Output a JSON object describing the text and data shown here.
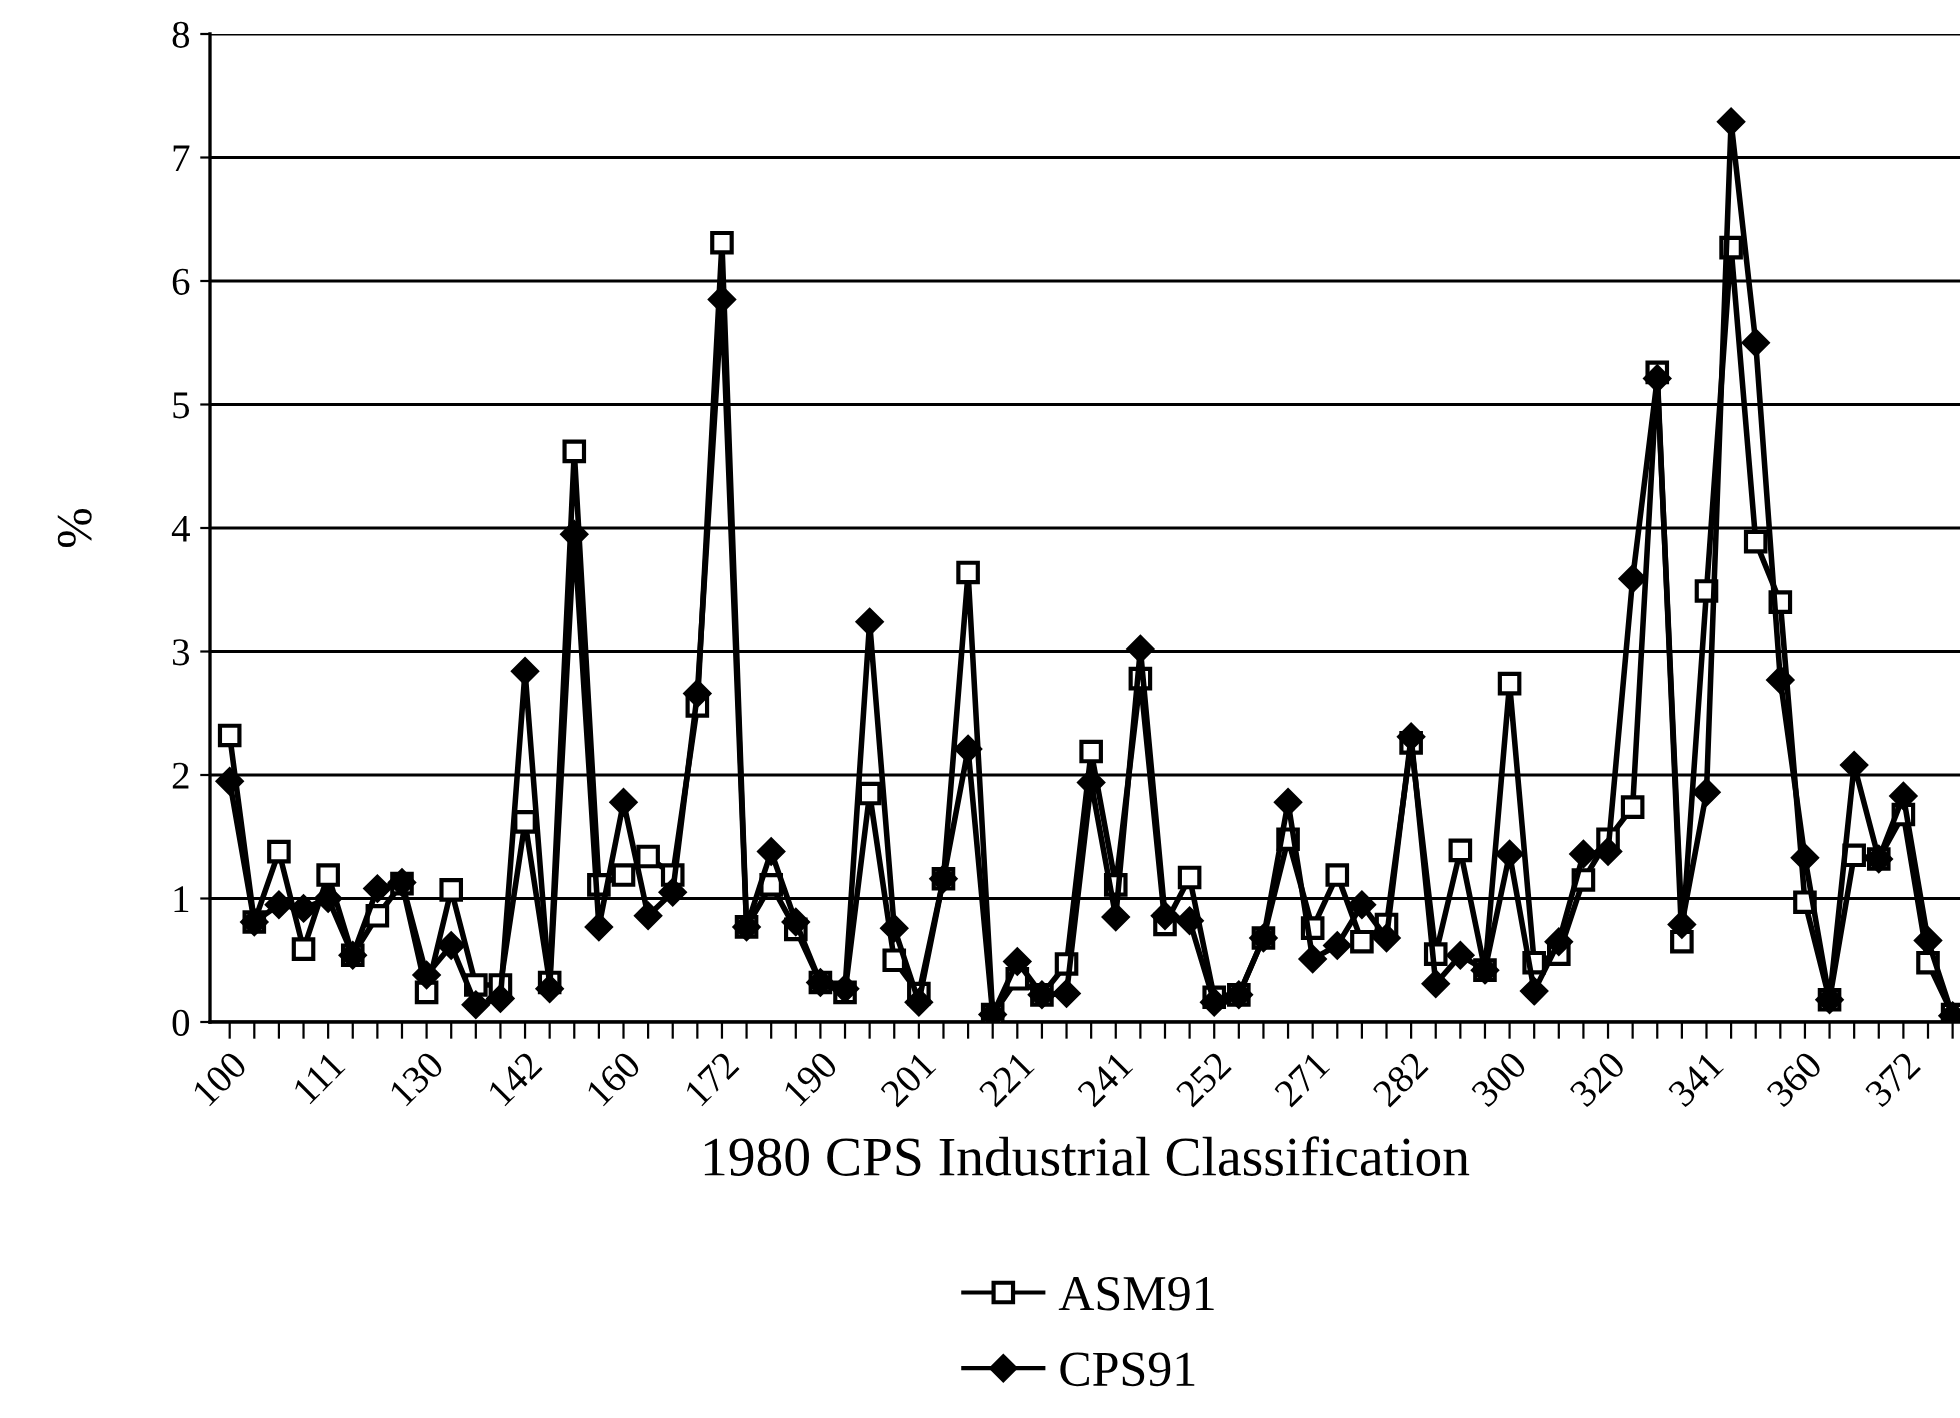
{
  "chart_data": {
    "type": "line",
    "xlabel": "1980 CPS Industrial Classification",
    "ylabel": "%",
    "categories": [
      "100",
      null,
      null,
      null,
      "111",
      null,
      null,
      null,
      "130",
      null,
      null,
      null,
      "142",
      null,
      null,
      null,
      "160",
      null,
      null,
      null,
      "172",
      null,
      null,
      null,
      "190",
      null,
      null,
      null,
      "201",
      null,
      null,
      null,
      "221",
      null,
      null,
      null,
      "241",
      null,
      null,
      null,
      "252",
      null,
      null,
      null,
      "271",
      null,
      null,
      null,
      "282",
      null,
      null,
      null,
      "300",
      null,
      null,
      null,
      "320",
      null,
      null,
      null,
      "341",
      null,
      null,
      null,
      "360",
      null,
      null,
      null,
      "372",
      null,
      null
    ],
    "series": [
      {
        "name": "ASM91",
        "color": "#000000",
        "marker": "square",
        "values": [
          2.32,
          0.81,
          1.38,
          0.59,
          1.19,
          0.54,
          0.86,
          1.12,
          0.24,
          1.07,
          0.3,
          0.3,
          1.62,
          0.32,
          4.62,
          1.11,
          1.19,
          1.34,
          1.19,
          2.56,
          6.31,
          0.77,
          1.11,
          0.75,
          0.32,
          0.24,
          1.85,
          0.5,
          0.23,
          1.16,
          3.64,
          0.06,
          0.35,
          0.22,
          0.47,
          2.19,
          1.11,
          2.78,
          0.79,
          1.17,
          0.2,
          0.22,
          0.68,
          1.48,
          0.76,
          1.19,
          0.65,
          0.79,
          2.26,
          0.55,
          1.39,
          0.42,
          2.74,
          0.48,
          0.55,
          1.15,
          1.48,
          1.74,
          5.26,
          0.65,
          3.49,
          6.27,
          3.89,
          3.4,
          0.97,
          0.18,
          1.35,
          1.32,
          1.68,
          0.48,
          0.06
        ]
      },
      {
        "name": "CPS91",
        "color": "#000000",
        "marker": "diamond",
        "values": [
          1.95,
          0.81,
          0.95,
          0.92,
          1.0,
          0.54,
          1.08,
          1.13,
          0.38,
          0.62,
          0.14,
          0.19,
          2.84,
          0.27,
          3.95,
          0.77,
          1.78,
          0.86,
          1.05,
          2.66,
          5.85,
          0.77,
          1.38,
          0.81,
          0.32,
          0.27,
          3.24,
          0.76,
          0.16,
          1.16,
          2.21,
          0.06,
          0.49,
          0.22,
          0.23,
          1.94,
          0.85,
          3.02,
          0.86,
          0.82,
          0.16,
          0.22,
          0.68,
          1.78,
          0.51,
          0.62,
          0.95,
          0.68,
          2.31,
          0.31,
          0.54,
          0.42,
          1.36,
          0.25,
          0.65,
          1.36,
          1.38,
          3.59,
          5.21,
          0.79,
          1.86,
          7.29,
          5.5,
          2.77,
          1.33,
          0.18,
          2.08,
          1.32,
          1.83,
          0.66,
          0.05
        ]
      }
    ],
    "ylim": [
      0,
      8
    ],
    "yticks": [
      0,
      1,
      2,
      3,
      4,
      5,
      6,
      7,
      8
    ],
    "grid": "y",
    "legend": "bottom",
    "line_style": "solid"
  }
}
